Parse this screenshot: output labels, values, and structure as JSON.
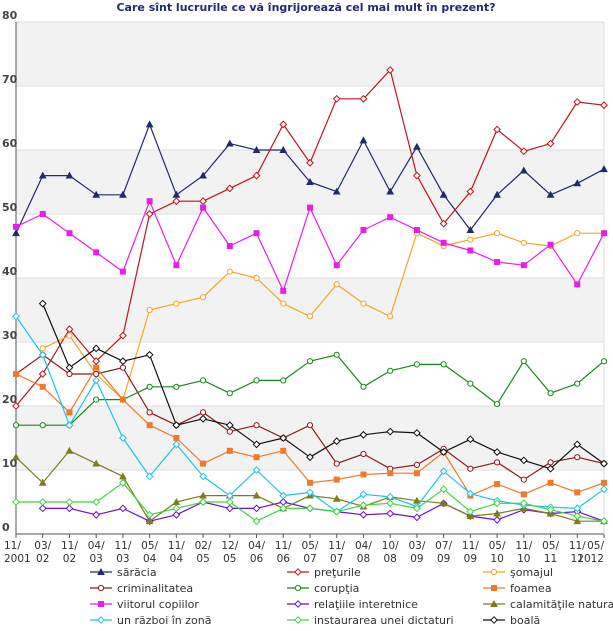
{
  "chart_data": {
    "type": "line",
    "title": "Care sînt lucrurile ce vă îngrijorează cel mai mult în prezent?",
    "xlabel": "",
    "ylabel": "",
    "ylim": [
      0,
      80
    ],
    "yticks": [
      0,
      10,
      20,
      30,
      40,
      50,
      60,
      70,
      80
    ],
    "grid": "horizontal bands",
    "legend_position": "bottom",
    "x_ticks": [
      {
        "i": 0,
        "top": "11/",
        "bottom": "2001"
      },
      {
        "i": 1,
        "top": "03/",
        "bottom": "02"
      },
      {
        "i": 2,
        "top": "11/",
        "bottom": "02"
      },
      {
        "i": 3,
        "top": "04/",
        "bottom": "03"
      },
      {
        "i": 4,
        "top": "11/",
        "bottom": "03"
      },
      {
        "i": 5,
        "top": "05/",
        "bottom": "04"
      },
      {
        "i": 6,
        "top": "11/",
        "bottom": "04"
      },
      {
        "i": 7,
        "top": "02/",
        "bottom": "05"
      },
      {
        "i": 8,
        "top": "12/",
        "bottom": "05"
      },
      {
        "i": 9,
        "top": "04/",
        "bottom": "06"
      },
      {
        "i": 10,
        "top": "11/",
        "bottom": "06"
      },
      {
        "i": 11,
        "top": "05/",
        "bottom": "07"
      },
      {
        "i": 12,
        "top": "11/",
        "bottom": "07"
      },
      {
        "i": 13,
        "top": "04/",
        "bottom": "08"
      },
      {
        "i": 14,
        "top": "10/",
        "bottom": "08"
      },
      {
        "i": 15,
        "top": "03/",
        "bottom": "09"
      },
      {
        "i": 16,
        "top": "07/",
        "bottom": "09"
      },
      {
        "i": 17,
        "top": "11/",
        "bottom": "09"
      },
      {
        "i": 18,
        "top": "05/",
        "bottom": "10"
      },
      {
        "i": 19,
        "top": "11/",
        "bottom": "10"
      },
      {
        "i": 20,
        "top": "05/",
        "bottom": "11"
      },
      {
        "i": 21,
        "top": "11/",
        "bottom": "11"
      },
      {
        "i": 22,
        "top": "05/",
        "bottom": "2012"
      }
    ],
    "series": [
      {
        "name": "sărăcia",
        "color": "#1f2a6b",
        "marker": "triangle",
        "values": [
          47,
          56,
          56,
          53,
          53,
          64,
          53,
          56,
          61,
          60,
          60,
          55,
          53.5,
          61.5,
          53.5,
          60.5,
          53,
          47.5,
          53,
          56.8,
          53,
          54.8,
          57
        ]
      },
      {
        "name": "preţurile",
        "color": "#c0141b",
        "marker": "diamond",
        "values": [
          20,
          25,
          32,
          27,
          31,
          50,
          52,
          52,
          54,
          56,
          64,
          58,
          68,
          68,
          72.5,
          56,
          48.5,
          53.5,
          63.2,
          59.8,
          61,
          67.5,
          67
        ]
      },
      {
        "name": "şomajul",
        "color": "#f5a623",
        "marker": "circle",
        "values": [
          null,
          29,
          31,
          25,
          21,
          35,
          36,
          37,
          41,
          40,
          36,
          34,
          39,
          36,
          34,
          47,
          45,
          46,
          47,
          45.5,
          45,
          47,
          47
        ]
      },
      {
        "name": "criminalitatea",
        "color": "#8b1a1a",
        "marker": "circle",
        "values": [
          25,
          28,
          25,
          25,
          26,
          19,
          17,
          19,
          16,
          17,
          15,
          17,
          11,
          12.5,
          10.2,
          10.8,
          13.3,
          10.2,
          11.2,
          8.5,
          11.2,
          12,
          11
        ]
      },
      {
        "name": "corupţia",
        "color": "#168a16",
        "marker": "circle",
        "values": [
          17,
          17,
          17,
          21,
          21,
          23,
          23,
          24,
          22,
          24,
          24,
          27,
          28,
          23,
          25.5,
          26.5,
          26.5,
          23.5,
          20.3,
          27,
          22,
          23.5,
          27
        ]
      },
      {
        "name": "foamea",
        "color": "#f07828",
        "marker": "square",
        "values": [
          25,
          23,
          19,
          26,
          21,
          17,
          15,
          11,
          13,
          12,
          13,
          8,
          8.5,
          9.3,
          9.5,
          9.5,
          12.8,
          6,
          7.8,
          6.2,
          8,
          6.5,
          8
        ]
      },
      {
        "name": "viitorul copiilor",
        "color": "#e81ee8",
        "marker": "square",
        "values": [
          48,
          50,
          47,
          44,
          41,
          52,
          42,
          51,
          45,
          47,
          38,
          51,
          42,
          47.5,
          49.5,
          47.5,
          45.5,
          44.3,
          42.5,
          42,
          45.2,
          39,
          47
        ]
      },
      {
        "name": "relaţiile interetnice",
        "color": "#6a0fd4",
        "marker": "diamond",
        "values": [
          null,
          4,
          4,
          3,
          4,
          2,
          3,
          5,
          4,
          4,
          5,
          4,
          3.5,
          3,
          3.2,
          2.6,
          4.8,
          2.8,
          2.2,
          3.8,
          3.2,
          3.5,
          2
        ]
      },
      {
        "name": "calamităţile naturale",
        "color": "#7d7d1e",
        "marker": "triangle",
        "values": [
          12,
          8,
          13,
          11,
          9,
          2,
          5,
          6,
          6,
          6,
          4,
          6,
          5.5,
          4.3,
          5.8,
          5.2,
          4.8,
          2.8,
          3.2,
          4,
          3.2,
          2,
          2
        ]
      },
      {
        "name": "un război în zonă",
        "color": "#18c6e8",
        "marker": "diamond",
        "values": [
          34,
          28,
          17,
          24,
          15,
          9,
          14,
          9,
          6,
          10,
          6,
          6.5,
          3.5,
          6.2,
          5.8,
          4.3,
          9.8,
          6.3,
          5.2,
          4.5,
          4.2,
          4,
          7
        ]
      },
      {
        "name": "instaurarea unei dictaturi",
        "color": "#3fd63f",
        "marker": "diamond",
        "values": [
          5,
          5,
          5,
          5,
          8,
          3,
          4,
          5,
          5,
          2,
          4,
          4,
          3.5,
          4.5,
          4.8,
          4,
          7,
          3.5,
          4.8,
          4.8,
          3.8,
          2.8,
          2
        ]
      },
      {
        "name": "boală",
        "color": "#111111",
        "marker": "diamond",
        "values": [
          null,
          36,
          26,
          29,
          27,
          28,
          17,
          18,
          17,
          14,
          15,
          12,
          14.5,
          15.5,
          16,
          15.8,
          12.8,
          14.8,
          12.8,
          11.5,
          10.2,
          14,
          11
        ]
      }
    ]
  }
}
